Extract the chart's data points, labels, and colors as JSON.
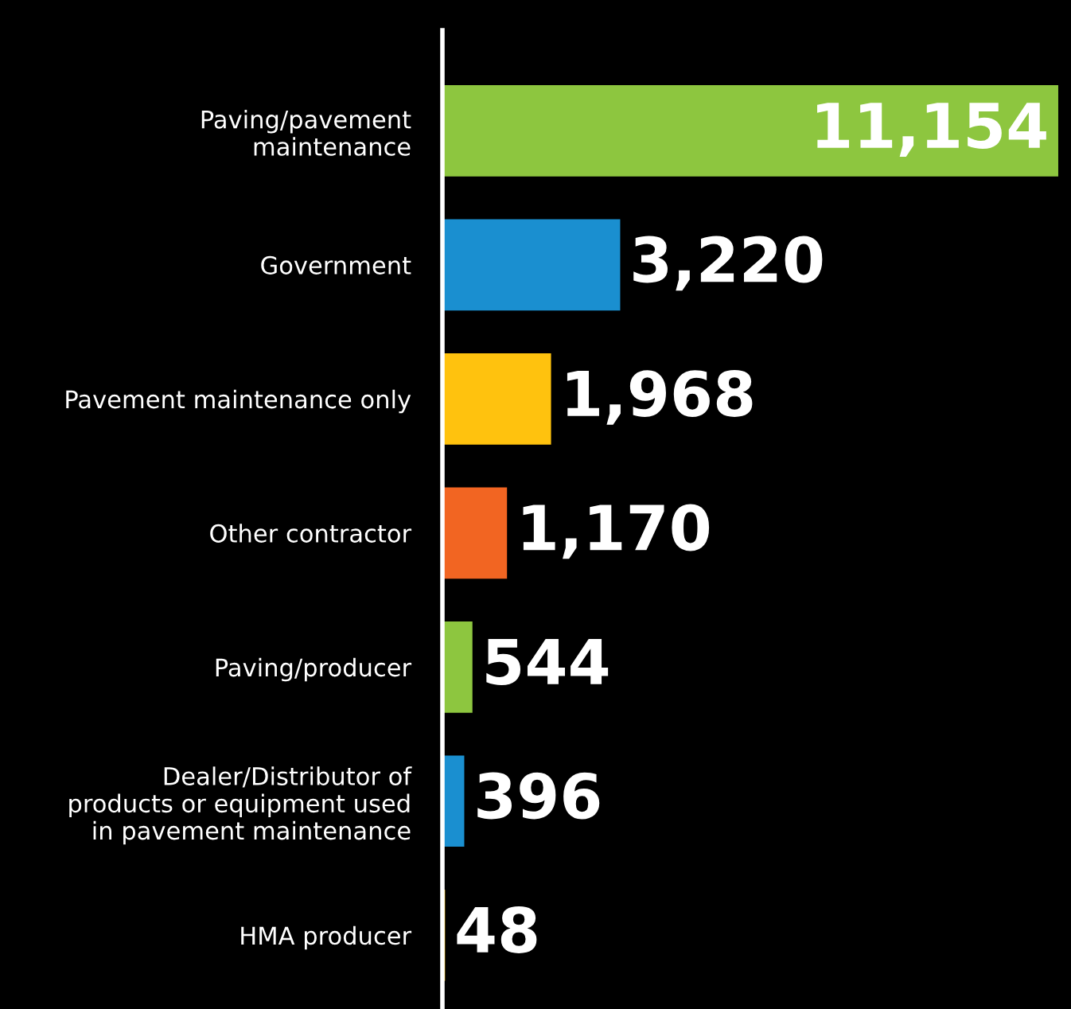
{
  "chart_data": {
    "type": "bar",
    "orientation": "horizontal",
    "categories": [
      "Paving/pavement\nmaintenance",
      "Government",
      "Pavement maintenance only",
      "Other contractor",
      "Paving/producer",
      "Dealer/Distributor of\nproducts or equipment used\nin pavement maintenance",
      "HMA producer"
    ],
    "values": [
      11154,
      3220,
      1968,
      1170,
      544,
      396,
      48
    ],
    "colors": [
      "#8dc63f",
      "#1a8fd0",
      "#ffc20e",
      "#f26522",
      "#8dc63f",
      "#1a8fd0",
      "#ffc20e"
    ],
    "value_labels": [
      "11,154",
      "3,220",
      "1,968",
      "1,170",
      "544",
      "396",
      "48"
    ],
    "grid": false,
    "legend": false
  }
}
